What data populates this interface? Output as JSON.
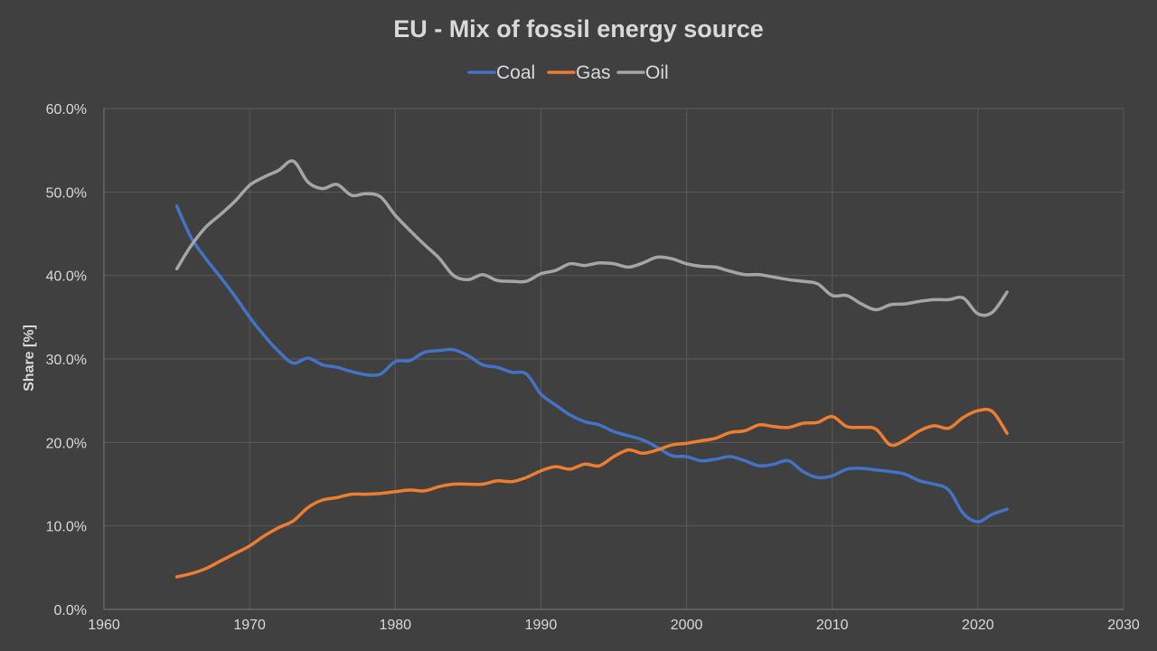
{
  "chart_data": {
    "type": "line",
    "title": "EU - Mix of fossil energy source",
    "xlabel": "",
    "ylabel": "Share [%]",
    "xlim": [
      1960,
      2030
    ],
    "ylim": [
      0,
      60
    ],
    "xticks": [
      1960,
      1970,
      1980,
      1990,
      2000,
      2010,
      2020,
      2030
    ],
    "xtick_labels": [
      "1960",
      "1970",
      "1980",
      "1990",
      "2000",
      "2010",
      "2020",
      "2030"
    ],
    "yticks": [
      0,
      10,
      20,
      30,
      40,
      50,
      60
    ],
    "ytick_labels": [
      "0.0%",
      "10.0%",
      "20.0%",
      "30.0%",
      "40.0%",
      "50.0%",
      "60.0%"
    ],
    "grid": true,
    "legend_position": "top-center",
    "x": [
      1965,
      1966,
      1967,
      1968,
      1969,
      1970,
      1971,
      1972,
      1973,
      1974,
      1975,
      1976,
      1977,
      1978,
      1979,
      1980,
      1981,
      1982,
      1983,
      1984,
      1985,
      1986,
      1987,
      1988,
      1989,
      1990,
      1991,
      1992,
      1993,
      1994,
      1995,
      1996,
      1997,
      1998,
      1999,
      2000,
      2001,
      2002,
      2003,
      2004,
      2005,
      2006,
      2007,
      2008,
      2009,
      2010,
      2011,
      2012,
      2013,
      2014,
      2015,
      2016,
      2017,
      2018,
      2019,
      2020,
      2021,
      2022
    ],
    "series": [
      {
        "name": "Coal",
        "color": "#4472c4",
        "values": [
          48.3,
          44.5,
          42.0,
          39.8,
          37.5,
          35.0,
          32.8,
          30.9,
          29.5,
          30.1,
          29.3,
          29.0,
          28.5,
          28.1,
          28.2,
          29.7,
          29.8,
          30.8,
          31.0,
          31.1,
          30.4,
          29.3,
          29.0,
          28.4,
          28.2,
          25.8,
          24.5,
          23.3,
          22.5,
          22.1,
          21.3,
          20.8,
          20.3,
          19.4,
          18.4,
          18.3,
          17.8,
          18.0,
          18.3,
          17.8,
          17.2,
          17.4,
          17.8,
          16.5,
          15.8,
          16.0,
          16.8,
          16.9,
          16.7,
          16.5,
          16.2,
          15.4,
          15.0,
          14.3,
          11.5,
          10.5,
          11.4,
          12.0
        ]
      },
      {
        "name": "Gas",
        "color": "#ed7d31",
        "values": [
          3.9,
          4.3,
          4.9,
          5.8,
          6.7,
          7.6,
          8.8,
          9.8,
          10.6,
          12.2,
          13.1,
          13.4,
          13.8,
          13.8,
          13.9,
          14.1,
          14.3,
          14.2,
          14.7,
          15.0,
          15.0,
          15.0,
          15.4,
          15.3,
          15.8,
          16.6,
          17.1,
          16.8,
          17.4,
          17.2,
          18.3,
          19.1,
          18.7,
          19.1,
          19.7,
          19.9,
          20.2,
          20.5,
          21.2,
          21.4,
          22.1,
          21.9,
          21.8,
          22.3,
          22.4,
          23.1,
          21.9,
          21.8,
          21.6,
          19.7,
          20.3,
          21.4,
          22.0,
          21.7,
          23.0,
          23.8,
          23.7,
          21.1
        ]
      },
      {
        "name": "Oil",
        "color": "#a5a5a5",
        "values": [
          40.8,
          43.6,
          45.8,
          47.3,
          48.9,
          50.8,
          51.8,
          52.6,
          53.7,
          51.2,
          50.4,
          50.9,
          49.6,
          49.8,
          49.4,
          47.2,
          45.4,
          43.7,
          42.1,
          40.0,
          39.5,
          40.1,
          39.4,
          39.3,
          39.3,
          40.2,
          40.6,
          41.4,
          41.2,
          41.5,
          41.4,
          41.0,
          41.5,
          42.2,
          42.0,
          41.4,
          41.1,
          41.0,
          40.5,
          40.1,
          40.1,
          39.8,
          39.5,
          39.3,
          39.0,
          37.6,
          37.6,
          36.6,
          35.9,
          36.5,
          36.6,
          36.9,
          37.1,
          37.1,
          37.3,
          35.4,
          35.6,
          38.0
        ]
      }
    ]
  }
}
